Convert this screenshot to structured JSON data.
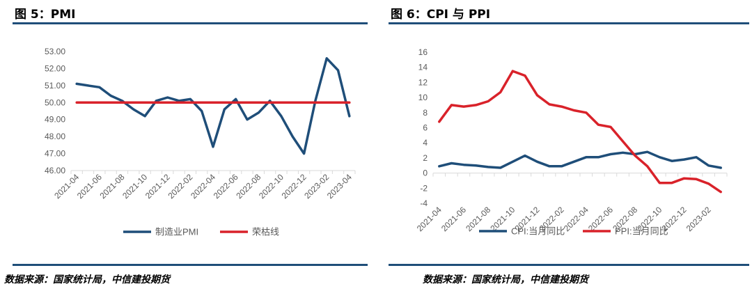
{
  "figures": [
    {
      "title": "图 5：PMI",
      "source": "数据来源：国家统计局，中信建投期货"
    },
    {
      "title": "图 6：CPI 与 PPI",
      "source": "数据来源：国家统计局，中信建投期货"
    }
  ],
  "colors": {
    "navy": "#1F4E79",
    "red": "#D9222A",
    "axis": "#D9D9D9",
    "text": "#595959"
  },
  "chart_data": [
    {
      "type": "line",
      "x": [
        "2021-04",
        "2021-05",
        "2021-06",
        "2021-07",
        "2021-08",
        "2021-09",
        "2021-10",
        "2021-11",
        "2021-12",
        "2022-01",
        "2022-02",
        "2022-03",
        "2022-04",
        "2022-05",
        "2022-06",
        "2022-07",
        "2022-08",
        "2022-09",
        "2022-10",
        "2022-11",
        "2022-12",
        "2023-01",
        "2023-02",
        "2023-03",
        "2023-04"
      ],
      "x_tick_labels": [
        "2021-04",
        "2021-06",
        "2021-08",
        "2021-10",
        "2021-12",
        "2022-02",
        "2022-04",
        "2022-06",
        "2022-08",
        "2022-10",
        "2022-12",
        "2023-02",
        "2023-04"
      ],
      "y_ticks": [
        "46.00",
        "47.00",
        "48.00",
        "49.00",
        "50.00",
        "51.00",
        "52.00",
        "53.00"
      ],
      "ylim": [
        46,
        53
      ],
      "series": [
        {
          "name": "制造业PMI",
          "color": "#1F4E79",
          "values": [
            51.1,
            51.0,
            50.9,
            50.4,
            50.1,
            49.6,
            49.2,
            50.1,
            50.3,
            50.1,
            50.2,
            49.5,
            47.4,
            49.6,
            50.2,
            49.0,
            49.4,
            50.1,
            49.2,
            48.0,
            47.0,
            50.1,
            52.6,
            51.9,
            49.2
          ]
        },
        {
          "name": "荣枯线",
          "color": "#D9222A",
          "values": [
            50,
            50,
            50,
            50,
            50,
            50,
            50,
            50,
            50,
            50,
            50,
            50,
            50,
            50,
            50,
            50,
            50,
            50,
            50,
            50,
            50,
            50,
            50,
            50,
            50
          ]
        }
      ],
      "legend": "bottom"
    },
    {
      "type": "line",
      "x": [
        "2021-04",
        "2021-05",
        "2021-06",
        "2021-07",
        "2021-08",
        "2021-09",
        "2021-10",
        "2021-11",
        "2021-12",
        "2022-01",
        "2022-02",
        "2022-03",
        "2022-04",
        "2022-05",
        "2022-06",
        "2022-07",
        "2022-08",
        "2022-09",
        "2022-10",
        "2022-11",
        "2022-12",
        "2023-01",
        "2023-02",
        "2023-03"
      ],
      "x_tick_labels": [
        "2021-04",
        "2021-06",
        "2021-08",
        "2021-10",
        "2021-12",
        "2022-02",
        "2022-04",
        "2022-06",
        "2022-08",
        "2022-10",
        "2022-12",
        "2023-02"
      ],
      "y_ticks": [
        "-4",
        "-2",
        "0",
        "2",
        "4",
        "6",
        "8",
        "10",
        "12",
        "14",
        "16"
      ],
      "ylim": [
        -4,
        16
      ],
      "series": [
        {
          "name": "CPI:当月同比",
          "color": "#1F4E79",
          "values": [
            0.9,
            1.3,
            1.1,
            1.0,
            0.8,
            0.7,
            1.5,
            2.3,
            1.5,
            0.9,
            0.9,
            1.5,
            2.1,
            2.1,
            2.5,
            2.7,
            2.5,
            2.8,
            2.1,
            1.6,
            1.8,
            2.1,
            1.0,
            0.7
          ]
        },
        {
          "name": "PPI:当月同比",
          "color": "#D9222A",
          "values": [
            6.8,
            9.0,
            8.8,
            9.0,
            9.5,
            10.7,
            13.5,
            12.9,
            10.3,
            9.1,
            8.8,
            8.3,
            8.0,
            6.4,
            6.1,
            4.2,
            2.3,
            0.9,
            -1.3,
            -1.3,
            -0.7,
            -0.8,
            -1.4,
            -2.5
          ]
        }
      ],
      "legend": "bottom"
    }
  ]
}
